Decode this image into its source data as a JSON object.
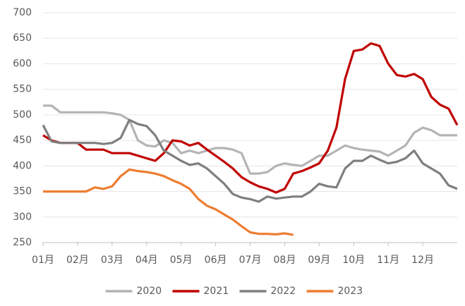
{
  "chart_data": {
    "type": "line",
    "x": [
      0,
      0.25,
      0.5,
      0.75,
      1,
      1.25,
      1.5,
      1.75,
      2,
      2.25,
      2.5,
      2.75,
      3,
      3.25,
      3.5,
      3.75,
      4,
      4.25,
      4.5,
      4.75,
      5,
      5.25,
      5.5,
      5.75,
      6,
      6.25,
      6.5,
      6.75,
      7,
      7.25,
      7.5,
      7.75,
      8,
      8.25,
      8.5,
      8.75,
      9,
      9.25,
      9.5,
      9.75,
      10,
      10.25,
      10.5,
      10.75,
      11,
      11.25,
      11.5,
      11.75,
      12
    ],
    "xlim": [
      0,
      12
    ],
    "xticks": [
      {
        "value": 0,
        "label": "01月"
      },
      {
        "value": 1,
        "label": "02月"
      },
      {
        "value": 2,
        "label": "03月"
      },
      {
        "value": 3,
        "label": "04月"
      },
      {
        "value": 4,
        "label": "05月"
      },
      {
        "value": 5,
        "label": "06月"
      },
      {
        "value": 6,
        "label": "07月"
      },
      {
        "value": 7,
        "label": "08月"
      },
      {
        "value": 8,
        "label": "09月"
      },
      {
        "value": 9,
        "label": "10月"
      },
      {
        "value": 10,
        "label": "11月"
      },
      {
        "value": 11,
        "label": "12月"
      }
    ],
    "ylim": [
      250,
      700
    ],
    "yticks": [
      250,
      300,
      350,
      400,
      450,
      500,
      550,
      600,
      650,
      700
    ],
    "grid": true,
    "legend": "bottom",
    "series": [
      {
        "name": "2020",
        "color": "#b4b4b4",
        "values": [
          518,
          518,
          505,
          505,
          505,
          505,
          505,
          505,
          503,
          500,
          490,
          450,
          440,
          438,
          450,
          445,
          425,
          430,
          425,
          430,
          435,
          435,
          432,
          425,
          385,
          385,
          388,
          400,
          405,
          402,
          400,
          410,
          420,
          420,
          430,
          440,
          435,
          432,
          430,
          428,
          420,
          430,
          440,
          465,
          475,
          470,
          460,
          460,
          460
        ]
      },
      {
        "name": "2021",
        "color": "#c00000",
        "values": [
          460,
          450,
          445,
          445,
          445,
          432,
          432,
          432,
          425,
          425,
          425,
          420,
          415,
          410,
          425,
          450,
          448,
          440,
          445,
          432,
          420,
          408,
          395,
          378,
          368,
          360,
          355,
          348,
          355,
          385,
          390,
          397,
          405,
          430,
          475,
          570,
          625,
          628,
          640,
          635,
          600,
          578,
          575,
          580,
          570,
          535,
          520,
          512,
          480
        ]
      },
      {
        "name": "2022",
        "color": "#7f7f7f",
        "values": [
          480,
          448,
          445,
          445,
          445,
          445,
          445,
          443,
          445,
          455,
          490,
          482,
          478,
          460,
          430,
          420,
          410,
          402,
          405,
          395,
          380,
          365,
          345,
          338,
          335,
          330,
          340,
          336,
          338,
          340,
          340,
          350,
          365,
          360,
          358,
          395,
          410,
          410,
          420,
          412,
          405,
          408,
          415,
          430,
          405,
          395,
          385,
          362,
          355
        ]
      },
      {
        "name": "2023",
        "color": "#ed7d31",
        "values": [
          350,
          350,
          350,
          350,
          350,
          350,
          358,
          355,
          360,
          380,
          393,
          390,
          388,
          385,
          380,
          372,
          365,
          355,
          335,
          322,
          315,
          305,
          295,
          282,
          270,
          267,
          267,
          266,
          268,
          265,
          null,
          null,
          null,
          null,
          null,
          null,
          null,
          null,
          null,
          null,
          null,
          null,
          null,
          null,
          null,
          null,
          null,
          null,
          null
        ]
      }
    ]
  }
}
